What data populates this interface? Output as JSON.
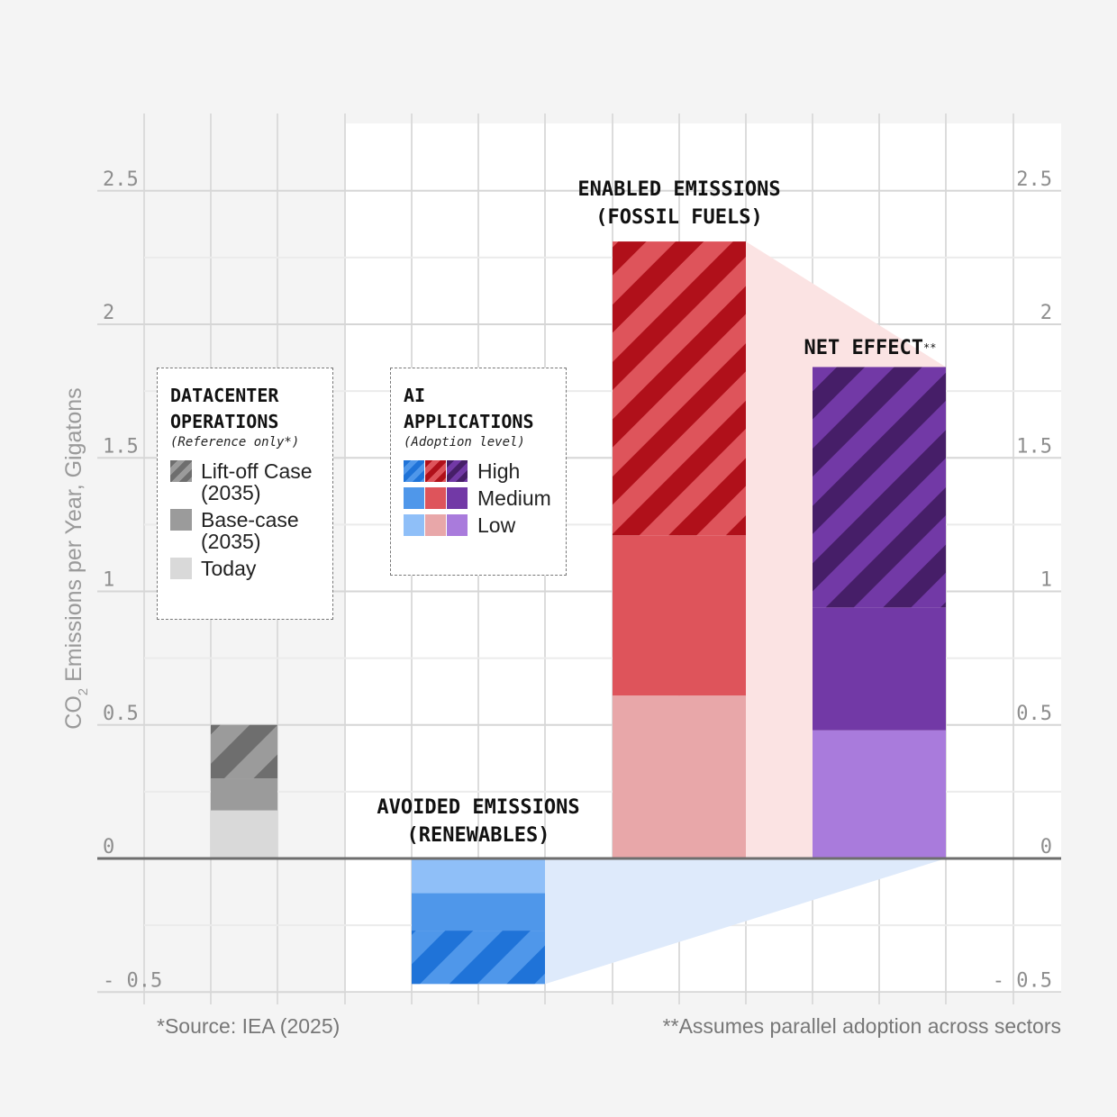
{
  "chart_data": {
    "type": "bar",
    "ylabel_prefix": "CO",
    "ylabel_sub": "2",
    "ylabel_rest": " Emissions per Year, Gigatons",
    "ylim": [
      -0.5,
      2.5
    ],
    "yticks": [
      {
        "value": 2.5,
        "label": "2.5"
      },
      {
        "value": 2,
        "label": "2"
      },
      {
        "value": 1.5,
        "label": "1.5"
      },
      {
        "value": 1,
        "label": "1"
      },
      {
        "value": 0.5,
        "label": "0.5"
      },
      {
        "value": 0,
        "label": "0"
      },
      {
        "value": -0.5,
        "label": "- 0.5"
      }
    ],
    "grid": true,
    "stacks": [
      {
        "name": "Datacenter Operations",
        "segments": [
          {
            "level": "Today",
            "from": 0,
            "to": 0.18,
            "color": "#d9d9d9"
          },
          {
            "level": "Base-case (2035)",
            "from": 0.18,
            "to": 0.3,
            "color": "#9b9b9b"
          },
          {
            "level": "Lift-off Case (2035)",
            "from": 0.3,
            "to": 0.5,
            "color": "#9b9b9b",
            "stripe": "#6e6e6e"
          }
        ]
      },
      {
        "name": "Avoided Emissions (Renewables)",
        "segments": [
          {
            "level": "Low",
            "from": 0,
            "to": -0.13,
            "color": "#8fbff8"
          },
          {
            "level": "Medium",
            "from": -0.13,
            "to": -0.27,
            "color": "#4f97ea"
          },
          {
            "level": "High",
            "from": -0.27,
            "to": -0.47,
            "color": "#4f97ea",
            "stripe": "#1f73d8"
          }
        ]
      },
      {
        "name": "Enabled Emissions (Fossil Fuels)",
        "segments": [
          {
            "level": "Low",
            "from": 0,
            "to": 0.61,
            "color": "#e8a7a9"
          },
          {
            "level": "Medium",
            "from": 0.61,
            "to": 1.21,
            "color": "#de545b"
          },
          {
            "level": "High",
            "from": 1.21,
            "to": 2.31,
            "color": "#de545b",
            "stripe": "#b0101a"
          }
        ]
      },
      {
        "name": "Net Effect",
        "segments": [
          {
            "level": "Low",
            "from": 0,
            "to": 0.48,
            "color": "#a97bdc"
          },
          {
            "level": "Medium",
            "from": 0.48,
            "to": 0.94,
            "color": "#7239a6"
          },
          {
            "level": "High",
            "from": 0.94,
            "to": 1.84,
            "color": "#7239a6",
            "stripe": "#461e68"
          }
        ]
      }
    ],
    "annotations": {
      "enabled_line1": "ENABLED EMISSIONS",
      "enabled_line2": "(FOSSIL FUELS)",
      "avoided_line1": "AVOIDED EMISSIONS",
      "avoided_line2": "(RENEWABLES)",
      "net": "NET EFFECT",
      "net_sup": "**"
    }
  },
  "legend_datacenter": {
    "title": "DATACENTER\nOPERATIONS",
    "subtitle": "(Reference only*)",
    "items": [
      {
        "label": "Lift-off Case\n(2035)"
      },
      {
        "label": "Base-case\n(2035)"
      },
      {
        "label": "Today"
      }
    ]
  },
  "legend_ai": {
    "title": "AI\nAPPLICATIONS",
    "subtitle": "(Adoption level)",
    "items": [
      {
        "label": "High"
      },
      {
        "label": "Medium"
      },
      {
        "label": "Low"
      }
    ]
  },
  "footnotes": {
    "source": "*Source: IEA (2025)",
    "assumption": "**Assumes parallel adoption across sectors"
  },
  "colors": {
    "zero_line": "#6e6e6e",
    "grid": "#dcdcdc",
    "plot_bg": "#ffffff",
    "enabled_wedge": "#fbe3e3",
    "avoided_wedge": "#deeafb"
  }
}
